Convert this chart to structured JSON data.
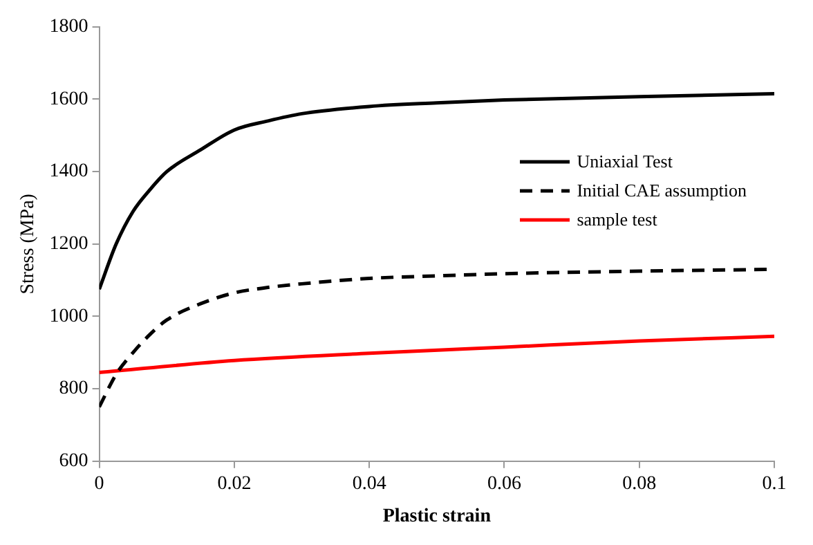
{
  "chart_data": {
    "type": "line",
    "xlabel": "Plastic strain",
    "ylabel": "Stress (MPa)",
    "xlim": [
      0,
      0.1
    ],
    "xticks": [
      0,
      0.02,
      0.04,
      0.06,
      0.08,
      0.1
    ],
    "ylim": [
      600,
      1800
    ],
    "yticks": [
      600,
      800,
      1000,
      1200,
      1400,
      1600,
      1800
    ],
    "grid": false,
    "legend": "right",
    "marker": "none",
    "series": [
      {
        "name": "Uniaxial Test",
        "color": "#000000",
        "line_style": "solid",
        "x": [
          0,
          0.0025,
          0.005,
          0.0075,
          0.01,
          0.015,
          0.02,
          0.025,
          0.03,
          0.04,
          0.05,
          0.06,
          0.08,
          0.1
        ],
        "values": [
          1075,
          1200,
          1290,
          1350,
          1400,
          1460,
          1515,
          1540,
          1560,
          1580,
          1590,
          1598,
          1607,
          1615
        ]
      },
      {
        "name": "Initial CAE assumption",
        "color": "#000000",
        "line_style": "dashed",
        "x": [
          0,
          0.0025,
          0.005,
          0.0075,
          0.01,
          0.015,
          0.02,
          0.025,
          0.03,
          0.04,
          0.05,
          0.06,
          0.08,
          0.1
        ],
        "values": [
          750,
          840,
          900,
          950,
          990,
          1035,
          1065,
          1080,
          1090,
          1105,
          1112,
          1118,
          1125,
          1130
        ]
      },
      {
        "name": "sample test",
        "color": "#ff0000",
        "line_style": "solid",
        "x": [
          0,
          0.02,
          0.04,
          0.06,
          0.08,
          0.1
        ],
        "values": [
          845,
          878,
          898,
          915,
          932,
          945
        ]
      }
    ]
  }
}
